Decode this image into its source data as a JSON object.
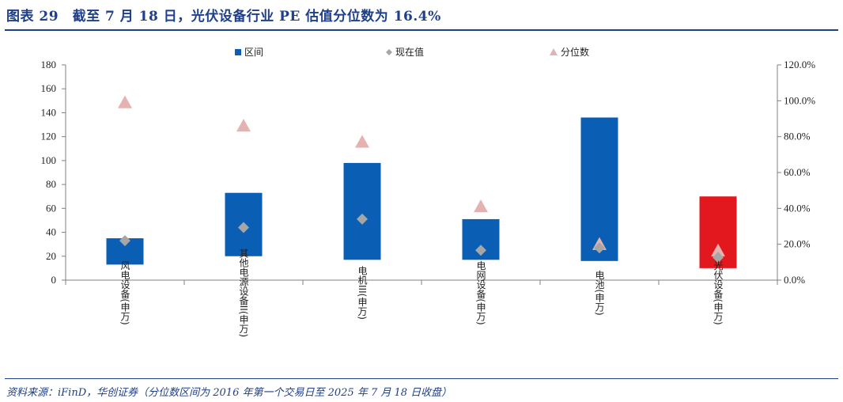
{
  "header": {
    "title": "图表 29　截至 7 月 18 日，光伏设备行业 PE 估值分位数为 16.4%"
  },
  "footer": {
    "source": "资料来源：iFinD，华创证券（分位数区间为 2016 年第一个交易日至 2025 年 7 月 18 日收盘）"
  },
  "chart_data": {
    "type": "bar",
    "legend_position": "top",
    "grid": false,
    "categories": [
      "风电设备(申万)",
      "其他电源设备II(申万)",
      "电机III(申万)",
      "电网设备(申万)",
      "电池(申万)",
      "光伏设备(申万)"
    ],
    "y_left": {
      "ylim": [
        0,
        180
      ],
      "ticks": [
        0,
        20,
        40,
        60,
        80,
        100,
        120,
        140,
        160,
        180
      ]
    },
    "y_right": {
      "ylim": [
        0,
        1.2
      ],
      "ticks": [
        "0.0%",
        "20.0%",
        "40.0%",
        "60.0%",
        "80.0%",
        "100.0%",
        "120.0%"
      ]
    },
    "series": [
      {
        "name": "区间",
        "kind": "floating-bar",
        "axis": "left",
        "low": [
          13,
          20,
          17,
          17,
          16,
          10
        ],
        "high": [
          35,
          73,
          98,
          51,
          136,
          70
        ],
        "colors": [
          "#0a5fb4",
          "#0a5fb4",
          "#0a5fb4",
          "#0a5fb4",
          "#0a5fb4",
          "#e3181f"
        ]
      },
      {
        "name": "现在值",
        "kind": "marker-diamond",
        "axis": "left",
        "color": "#a6a6a6",
        "values": [
          33,
          44,
          51,
          25,
          27,
          19
        ]
      },
      {
        "name": "分位数",
        "kind": "marker-triangle",
        "axis": "right",
        "color": "#e5b2b2",
        "values": [
          0.99,
          0.86,
          0.77,
          0.41,
          0.2,
          0.164
        ]
      }
    ]
  }
}
